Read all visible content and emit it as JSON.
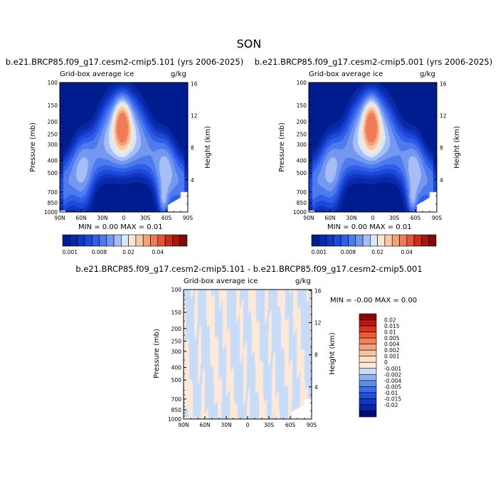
{
  "page": {
    "season": "SON"
  },
  "colors": {
    "contour_levels": [
      "#001d8f",
      "#0a29a8",
      "#1236c4",
      "#1c49d8",
      "#2f5ee8",
      "#4d7aee",
      "#7498f0",
      "#a6bdf5",
      "#d6e8fb",
      "#fbe6d6",
      "#f8c8a6",
      "#f5a27a",
      "#ee7c57",
      "#e25537",
      "#cc2c1e",
      "#a8150f",
      "#7e0a09"
    ],
    "diff_levels": [
      "#000e7a",
      "#0a26a6",
      "#1236c4",
      "#1f4fe0",
      "#3b6cf0",
      "#5c8aef",
      "#8fb0f2",
      "#c8dcf8",
      "#fde9d9",
      "#fde1cc",
      "#fbc5a4",
      "#f8a37c",
      "#f3805a",
      "#ea5c3a",
      "#d93220",
      "#b8170f",
      "#8a0709"
    ]
  },
  "left_panel": {
    "title": "b.e21.BRCP85.f09_g17.cesm2-cmip5.101 (yrs 2006-2025)",
    "variable": "Grid-box average ice",
    "units": "g/kg",
    "ylabel_left": "Pressure (mb)",
    "ylabel_right": "Height (km)",
    "min_max": "MIN =    0.00   MAX =    0.01"
  },
  "right_panel": {
    "title": "b.e21.BRCP85.f09_g17.cesm2-cmip5.001 (yrs 2006-2025)",
    "variable": "Grid-box average ice",
    "units": "g/kg",
    "ylabel_left": "Pressure (mb)",
    "ylabel_right": "Height (km)",
    "min_max": "MIN =    0.00   MAX =    0.01"
  },
  "diff_panel": {
    "title": "b.e21.BRCP85.f09_g17.cesm2-cmip5.101 - b.e21.BRCP85.f09_g17.cesm2-cmip5.001",
    "variable": "Grid-box average ice",
    "units": "g/kg",
    "ylabel_left": "Pressure (mb)",
    "ylabel_right": "Height (km)",
    "min_max": "MIN =   -0.00   MAX =    0.00"
  },
  "chart_data": [
    {
      "type": "heatmap",
      "title": "b.e21.BRCP85.f09_g17.cesm2-cmip5.101 (yrs 2006-2025)",
      "variable": "Grid-box average ice",
      "units": "g/kg",
      "x_ticks": [
        "90N",
        "60N",
        "30N",
        "0",
        "30S",
        "60S",
        "90S"
      ],
      "x_values": [
        90,
        60,
        30,
        0,
        -30,
        -60,
        -90
      ],
      "y_ticks": [
        100,
        150,
        200,
        250,
        300,
        400,
        500,
        700,
        850,
        1000
      ],
      "y_scale": "log",
      "y_right_ticks": [
        16,
        12,
        8,
        4
      ],
      "xlim": [
        90,
        -90
      ],
      "ylim": [
        1000,
        100
      ],
      "min": 0.0,
      "max": 0.01,
      "peak": {
        "lat": 0,
        "pressure": 220,
        "value": 0.01
      },
      "colorbar_labels": [
        "0.001",
        "0.008",
        "0.02",
        "0.04"
      ]
    },
    {
      "type": "heatmap",
      "title": "b.e21.BRCP85.f09_g17.cesm2-cmip5.001 (yrs 2006-2025)",
      "variable": "Grid-box average ice",
      "units": "g/kg",
      "x_ticks": [
        "90N",
        "60N",
        "30N",
        "0",
        "30S",
        "60S",
        "90S"
      ],
      "x_values": [
        90,
        60,
        30,
        0,
        -30,
        -60,
        -90
      ],
      "y_ticks": [
        100,
        150,
        200,
        250,
        300,
        400,
        500,
        700,
        850,
        1000
      ],
      "y_scale": "log",
      "y_right_ticks": [
        16,
        12,
        8,
        4
      ],
      "xlim": [
        90,
        -90
      ],
      "ylim": [
        1000,
        100
      ],
      "min": 0.0,
      "max": 0.01,
      "peak": {
        "lat": 0,
        "pressure": 220,
        "value": 0.01
      },
      "colorbar_labels": [
        "0.001",
        "0.008",
        "0.02",
        "0.04"
      ]
    },
    {
      "type": "heatmap",
      "title": "b.e21.BRCP85.f09_g17.cesm2-cmip5.101 - b.e21.BRCP85.f09_g17.cesm2-cmip5.001",
      "variable": "Grid-box average ice",
      "units": "g/kg",
      "x_ticks": [
        "90N",
        "60N",
        "30N",
        "0",
        "30S",
        "60S",
        "90S"
      ],
      "x_values": [
        90,
        60,
        30,
        0,
        -30,
        -60,
        -90
      ],
      "y_ticks": [
        100,
        150,
        200,
        250,
        300,
        400,
        500,
        700,
        850,
        1000
      ],
      "y_scale": "log",
      "y_right_ticks": [
        16,
        12,
        8,
        4
      ],
      "xlim": [
        90,
        -90
      ],
      "ylim": [
        1000,
        100
      ],
      "min": -0.0,
      "max": 0.0,
      "legend": {
        "placement": "right",
        "labels": [
          "0.02",
          "0.015",
          "0.01",
          "0.005",
          "0.004",
          "0.002",
          "0.001",
          "0",
          "-0.001",
          "-0.002",
          "-0.004",
          "-0.005",
          "-0.01",
          "-0.015",
          "-0.02"
        ]
      }
    }
  ]
}
